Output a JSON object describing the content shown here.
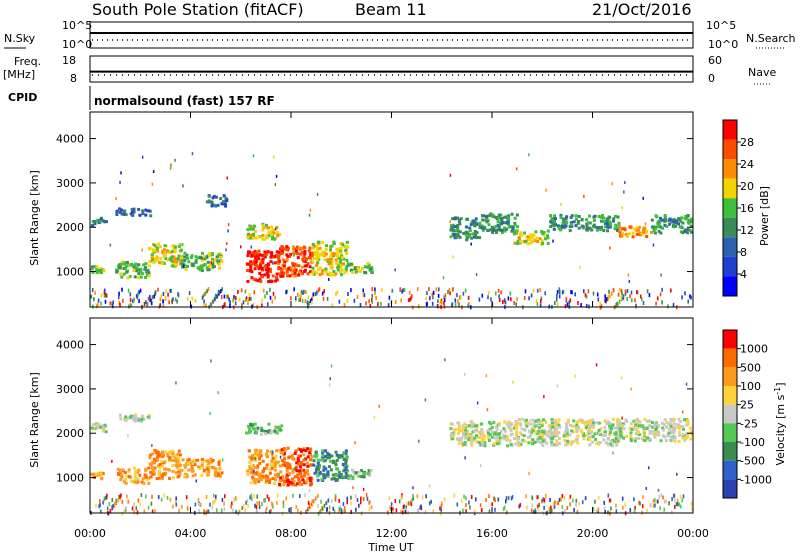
{
  "header": {
    "station": "South Pole Station (fitACF)",
    "beam": "Beam 11",
    "date": "21/Oct/2016"
  },
  "left_labels": {
    "nsky": "N.Sky",
    "freq": "Freq.",
    "freq_unit": "[MHz]",
    "cpid": "CPID"
  },
  "right_labels": {
    "nsearch": "N.Search",
    "nave": "Nave"
  },
  "cpid_value": "normalsound (fast) 157 RF",
  "chart_data": [
    {
      "type": "line",
      "title": "N.Sky / N.Search",
      "left_ticks": [
        "10^5",
        "10^0"
      ],
      "right_ticks": [
        "10^5",
        "10^0"
      ]
    },
    {
      "type": "line",
      "title": "Freq. / Nave",
      "left_ticks": [
        "18",
        "8"
      ],
      "right_ticks": [
        "60",
        "0"
      ],
      "freq_mhz": 12.0
    },
    {
      "type": "heatmap",
      "quantity": "Power",
      "ylabel": "Slant Range [km]",
      "yticks": [
        "1000",
        "2000",
        "3000",
        "4000"
      ],
      "ylim": [
        200,
        4600
      ],
      "xlim_hours": [
        0,
        24
      ],
      "colorbar": {
        "label": "Power [dB]",
        "ticks": [
          "4",
          "8",
          "12",
          "16",
          "20",
          "24",
          "28"
        ],
        "range": [
          0,
          32
        ],
        "colors": [
          "#0000ff",
          "#1f3fd0",
          "#2e5fb0",
          "#3a8a5a",
          "#3cbf3c",
          "#f3d400",
          "#ff8c00",
          "#ff4a00",
          "#ff0000"
        ]
      },
      "regions": [
        {
          "t0": 0.0,
          "t1": 0.6,
          "r0": 2050,
          "r1": 2250,
          "level": 3
        },
        {
          "t0": 1.0,
          "t1": 2.4,
          "r0": 2280,
          "r1": 2450,
          "level": 2
        },
        {
          "t0": 0.0,
          "t1": 0.5,
          "r0": 1000,
          "r1": 1150,
          "level": 4
        },
        {
          "t0": 1.0,
          "t1": 2.3,
          "r0": 880,
          "r1": 1250,
          "level": 4
        },
        {
          "t0": 2.3,
          "t1": 3.6,
          "r0": 1150,
          "r1": 1650,
          "level": 5
        },
        {
          "t0": 3.6,
          "t1": 5.2,
          "r0": 1050,
          "r1": 1450,
          "level": 4
        },
        {
          "t0": 4.6,
          "t1": 5.4,
          "r0": 2500,
          "r1": 2750,
          "level": 2
        },
        {
          "t0": 6.2,
          "t1": 7.5,
          "r0": 1750,
          "r1": 2100,
          "level": 5
        },
        {
          "t0": 6.2,
          "t1": 7.4,
          "r0": 800,
          "r1": 1500,
          "level": 8
        },
        {
          "t0": 7.4,
          "t1": 8.8,
          "r0": 900,
          "r1": 1600,
          "level": 7
        },
        {
          "t0": 8.8,
          "t1": 10.2,
          "r0": 950,
          "r1": 1700,
          "level": 5
        },
        {
          "t0": 10.2,
          "t1": 11.2,
          "r0": 1000,
          "r1": 1250,
          "level": 4
        },
        {
          "t0": 14.3,
          "t1": 15.5,
          "r0": 1750,
          "r1": 2250,
          "level": 3
        },
        {
          "t0": 15.5,
          "t1": 17.0,
          "r0": 1900,
          "r1": 2350,
          "level": 3
        },
        {
          "t0": 16.8,
          "t1": 18.2,
          "r0": 1650,
          "r1": 1950,
          "level": 5
        },
        {
          "t0": 18.2,
          "t1": 21.0,
          "r0": 1950,
          "r1": 2300,
          "level": 3
        },
        {
          "t0": 21.0,
          "t1": 22.3,
          "r0": 1800,
          "r1": 2050,
          "level": 6
        },
        {
          "t0": 22.3,
          "t1": 23.9,
          "r0": 1900,
          "r1": 2300,
          "level": 3
        }
      ]
    },
    {
      "type": "heatmap",
      "quantity": "Velocity",
      "ylabel": "Slant Range [km]",
      "yticks": [
        "1000",
        "2000",
        "3000",
        "4000"
      ],
      "ylim": [
        200,
        4600
      ],
      "xlim_hours": [
        0,
        24
      ],
      "colorbar": {
        "label": "Velocity [m s",
        "label_sup": "-1",
        "label_tail": "]",
        "ticks": [
          "1000",
          "500",
          "100",
          "25",
          "-25",
          "-100",
          "-500",
          "-1000"
        ],
        "colors": [
          "#2a3fb0",
          "#3060c8",
          "#3c8c50",
          "#55c855",
          "#c8c8c8",
          "#ffd23c",
          "#ff9a1e",
          "#ff6a00",
          "#ff0000"
        ]
      },
      "regions": [
        {
          "t0": 0.0,
          "t1": 0.6,
          "r0": 2050,
          "r1": 2250,
          "level": 4
        },
        {
          "t0": 1.0,
          "t1": 2.4,
          "r0": 2280,
          "r1": 2450,
          "level": 4
        },
        {
          "t0": 0.0,
          "t1": 0.5,
          "r0": 1000,
          "r1": 1150,
          "level": 6
        },
        {
          "t0": 1.0,
          "t1": 2.3,
          "r0": 900,
          "r1": 1250,
          "level": 6
        },
        {
          "t0": 2.3,
          "t1": 3.6,
          "r0": 1000,
          "r1": 1650,
          "level": 6
        },
        {
          "t0": 3.6,
          "t1": 5.2,
          "r0": 1050,
          "r1": 1450,
          "level": 6
        },
        {
          "t0": 6.2,
          "t1": 7.6,
          "r0": 2000,
          "r1": 2250,
          "level": 3
        },
        {
          "t0": 6.2,
          "t1": 7.4,
          "r0": 900,
          "r1": 1650,
          "level": 6
        },
        {
          "t0": 7.4,
          "t1": 8.8,
          "r0": 850,
          "r1": 1700,
          "level": 7
        },
        {
          "t0": 8.8,
          "t1": 10.2,
          "r0": 950,
          "r1": 1650,
          "level": 2
        },
        {
          "t0": 10.2,
          "t1": 11.2,
          "r0": 1000,
          "r1": 1200,
          "level": 3
        },
        {
          "t0": 14.3,
          "t1": 17.0,
          "r0": 1750,
          "r1": 2300,
          "level": 4
        },
        {
          "t0": 17.0,
          "t1": 21.0,
          "r0": 1750,
          "r1": 2350,
          "level": 4
        },
        {
          "t0": 21.0,
          "t1": 23.9,
          "r0": 1850,
          "r1": 2350,
          "level": 4
        }
      ]
    }
  ],
  "xaxis": {
    "ticks": [
      "00:00",
      "04:00",
      "08:00",
      "12:00",
      "16:00",
      "20:00",
      "00:00"
    ],
    "label": "Time UT"
  }
}
